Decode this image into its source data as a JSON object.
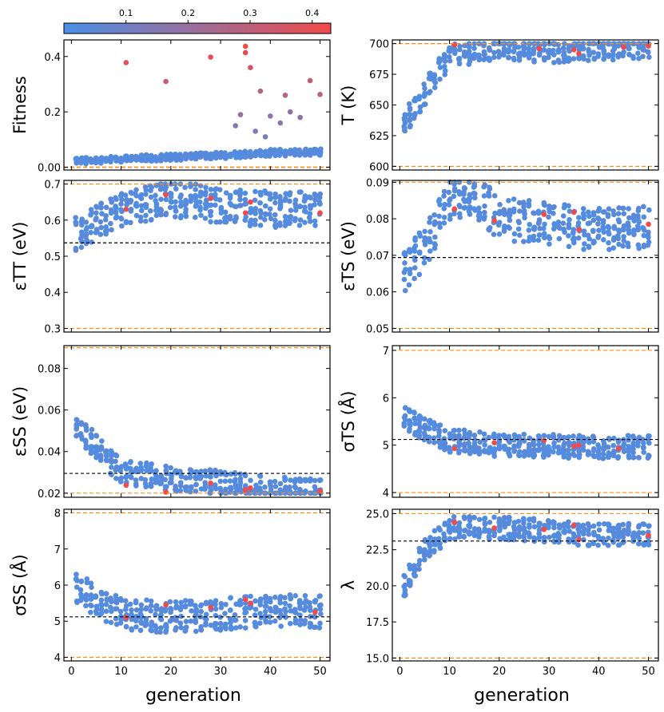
{
  "colorbar": {
    "ticks": [
      "0.1",
      "0.2",
      "0.3",
      "0.4"
    ],
    "tick_values": [
      0.1,
      0.2,
      0.3,
      0.4
    ],
    "range": [
      0.0,
      0.43
    ],
    "color_low": "#4a90e8",
    "color_high": "#f04a4a"
  },
  "colors": {
    "bounds_line": "#ff8c1a",
    "reference_line": "#000000"
  },
  "xlabel": "generation",
  "chart_data": [
    {
      "id": "fitness",
      "type": "scatter",
      "ylabel": "Fitness",
      "ylim": [
        -0.01,
        0.46
      ],
      "ticks": [
        0.0,
        0.2,
        0.4
      ],
      "tick_labels": [
        "0.00",
        "0.2",
        "0.4"
      ],
      "xlim": [
        -1.5,
        52
      ],
      "x_ticks": [
        0,
        10,
        20,
        30,
        40,
        50
      ],
      "bounds": [
        0.0
      ],
      "reference": null,
      "trend": [
        [
          0,
          0.022
        ],
        [
          10,
          0.03
        ],
        [
          20,
          0.036
        ],
        [
          30,
          0.043
        ],
        [
          40,
          0.052
        ],
        [
          50,
          0.055
        ]
      ],
      "spread": 0.012,
      "highlights": [
        [
          11,
          0.378
        ],
        [
          19,
          0.31
        ],
        [
          28,
          0.398
        ],
        [
          35,
          0.437
        ],
        [
          35,
          0.414
        ],
        [
          36,
          0.36
        ],
        [
          48,
          0.313
        ],
        [
          50,
          0.263
        ],
        [
          38,
          0.275
        ],
        [
          34,
          0.19
        ],
        [
          40,
          0.185
        ],
        [
          42,
          0.16
        ],
        [
          44,
          0.2
        ],
        [
          46,
          0.18
        ],
        [
          43,
          0.26
        ],
        [
          33,
          0.15
        ],
        [
          37,
          0.13
        ],
        [
          39,
          0.11
        ]
      ]
    },
    {
      "id": "temperature",
      "type": "scatter",
      "ylabel": "T (K)",
      "ylim": [
        597,
        703
      ],
      "ticks": [
        600,
        625,
        650,
        675,
        700
      ],
      "tick_labels": [
        "600",
        "625",
        "650",
        "675",
        "700"
      ],
      "xlim": [
        -1.5,
        52
      ],
      "x_ticks": [
        0,
        10,
        20,
        30,
        40,
        50
      ],
      "bounds": [
        600,
        700
      ],
      "reference": null,
      "trend": [
        [
          0,
          630
        ],
        [
          5,
          660
        ],
        [
          10,
          690
        ],
        [
          20,
          697
        ],
        [
          30,
          694
        ],
        [
          40,
          696
        ],
        [
          50,
          698
        ]
      ],
      "spread": 10,
      "highlights": [
        [
          11,
          699
        ],
        [
          28,
          696
        ],
        [
          35,
          695
        ],
        [
          36,
          692
        ],
        [
          45,
          697
        ],
        [
          50,
          698
        ]
      ]
    },
    {
      "id": "eps_tt",
      "type": "scatter",
      "ylabel": "εTT (eV)",
      "ylim": [
        0.29,
        0.71
      ],
      "ticks": [
        0.3,
        0.4,
        0.5,
        0.6,
        0.7
      ],
      "tick_labels": [
        "0.3",
        "0.4",
        "0.5",
        "0.6",
        "0.7"
      ],
      "xlim": [
        -1.5,
        52
      ],
      "x_ticks": [
        0,
        10,
        20,
        30,
        40,
        50
      ],
      "bounds": [
        0.3,
        0.7
      ],
      "reference": 0.537,
      "trend": [
        [
          0,
          0.55
        ],
        [
          10,
          0.63
        ],
        [
          20,
          0.66
        ],
        [
          30,
          0.64
        ],
        [
          40,
          0.63
        ],
        [
          50,
          0.63
        ]
      ],
      "spread": 0.05,
      "highlights": [
        [
          11,
          0.63
        ],
        [
          19,
          0.67
        ],
        [
          28,
          0.66
        ],
        [
          35,
          0.62
        ],
        [
          36,
          0.65
        ],
        [
          50,
          0.62
        ]
      ]
    },
    {
      "id": "eps_ts",
      "type": "scatter",
      "ylabel": "εTS (eV)",
      "ylim": [
        0.049,
        0.0905
      ],
      "ticks": [
        0.05,
        0.06,
        0.07,
        0.08,
        0.09
      ],
      "tick_labels": [
        "0.05",
        "0.06",
        "0.07",
        "0.08",
        "0.09"
      ],
      "xlim": [
        -1.5,
        52
      ],
      "x_ticks": [
        0,
        10,
        20,
        30,
        40,
        50
      ],
      "bounds": [
        0.05,
        0.09
      ],
      "reference": 0.0694,
      "trend": [
        [
          0,
          0.064
        ],
        [
          5,
          0.072
        ],
        [
          10,
          0.085
        ],
        [
          15,
          0.087
        ],
        [
          20,
          0.08
        ],
        [
          30,
          0.079
        ],
        [
          40,
          0.077
        ],
        [
          50,
          0.078
        ]
      ],
      "spread": 0.006,
      "highlights": [
        [
          11,
          0.0827
        ],
        [
          19,
          0.0795
        ],
        [
          29,
          0.0812
        ],
        [
          35,
          0.0818
        ],
        [
          36,
          0.077
        ],
        [
          50,
          0.0785
        ]
      ]
    },
    {
      "id": "eps_ss",
      "type": "scatter",
      "ylabel": "εSS (eV)",
      "ylim": [
        0.018,
        0.091
      ],
      "ticks": [
        0.02,
        0.04,
        0.06,
        0.08
      ],
      "tick_labels": [
        "0.02",
        "0.04",
        "0.06",
        "0.08"
      ],
      "xlim": [
        -1.5,
        52
      ],
      "x_ticks": [
        0,
        10,
        20,
        30,
        40,
        50
      ],
      "bounds": [
        0.02,
        0.09
      ],
      "reference": 0.0295,
      "trend": [
        [
          0,
          0.056
        ],
        [
          5,
          0.042
        ],
        [
          10,
          0.03
        ],
        [
          20,
          0.027
        ],
        [
          30,
          0.025
        ],
        [
          40,
          0.022
        ],
        [
          50,
          0.021
        ]
      ],
      "spread": 0.006,
      "highlights": [
        [
          11,
          0.0238
        ],
        [
          19,
          0.0205
        ],
        [
          28,
          0.0248
        ],
        [
          35,
          0.0215
        ],
        [
          36,
          0.0225
        ],
        [
          50,
          0.021
        ]
      ]
    },
    {
      "id": "sigma_ts",
      "type": "scatter",
      "ylabel": "σTS (Å)",
      "ylim": [
        3.9,
        7.1
      ],
      "ticks": [
        4,
        5,
        6,
        7
      ],
      "tick_labels": [
        "4",
        "5",
        "6",
        "7"
      ],
      "xlim": [
        -1.5,
        52
      ],
      "x_ticks": [
        0,
        10,
        20,
        30,
        40,
        50
      ],
      "bounds": [
        4.0,
        7.0
      ],
      "reference": 5.12,
      "trend": [
        [
          0,
          5.6
        ],
        [
          10,
          5.1
        ],
        [
          20,
          5.0
        ],
        [
          30,
          4.98
        ],
        [
          40,
          4.96
        ],
        [
          50,
          4.96
        ]
      ],
      "spread": 0.25,
      "highlights": [
        [
          11,
          4.93
        ],
        [
          19,
          5.05
        ],
        [
          29,
          5.1
        ],
        [
          35,
          4.98
        ],
        [
          36,
          5.0
        ],
        [
          44,
          4.93
        ]
      ]
    },
    {
      "id": "sigma_ss",
      "type": "scatter",
      "ylabel": "σSS (Å)",
      "ylim": [
        3.9,
        8.1
      ],
      "ticks": [
        4,
        5,
        6,
        7,
        8
      ],
      "tick_labels": [
        "4",
        "5",
        "6",
        "7",
        "8"
      ],
      "xlim": [
        -1.5,
        52
      ],
      "x_ticks": [
        0,
        10,
        20,
        30,
        40,
        50
      ],
      "bounds": [
        4.0,
        8.0
      ],
      "reference": 5.12,
      "trend": [
        [
          0,
          6.0
        ],
        [
          10,
          5.2
        ],
        [
          20,
          5.1
        ],
        [
          30,
          5.2
        ],
        [
          40,
          5.3
        ],
        [
          50,
          5.25
        ]
      ],
      "spread": 0.45,
      "highlights": [
        [
          11,
          5.1
        ],
        [
          19,
          5.45
        ],
        [
          28,
          5.38
        ],
        [
          35,
          5.6
        ],
        [
          36,
          5.5
        ],
        [
          49,
          5.25
        ]
      ]
    },
    {
      "id": "lambda",
      "type": "scatter",
      "ylabel": "λ",
      "ylim": [
        14.8,
        25.3
      ],
      "ticks": [
        15.0,
        17.5,
        20.0,
        22.5,
        25.0
      ],
      "tick_labels": [
        "15.0",
        "17.5",
        "20.0",
        "22.5",
        "25.0"
      ],
      "xlim": [
        -1.5,
        52
      ],
      "x_ticks": [
        0,
        10,
        20,
        30,
        40,
        50
      ],
      "bounds": [
        15.0,
        25.0
      ],
      "reference": 23.1,
      "trend": [
        [
          0,
          19.5
        ],
        [
          5,
          22.5
        ],
        [
          10,
          24.0
        ],
        [
          20,
          24.0
        ],
        [
          30,
          23.8
        ],
        [
          40,
          23.5
        ],
        [
          50,
          23.6
        ]
      ],
      "spread": 0.8,
      "highlights": [
        [
          11,
          24.4
        ],
        [
          19,
          24.0
        ],
        [
          29,
          23.9
        ],
        [
          35,
          24.2
        ],
        [
          36,
          23.2
        ],
        [
          50,
          23.5
        ]
      ]
    }
  ],
  "tick_text": {
    "x": [
      "0",
      "10",
      "20",
      "30",
      "40",
      "50"
    ]
  }
}
